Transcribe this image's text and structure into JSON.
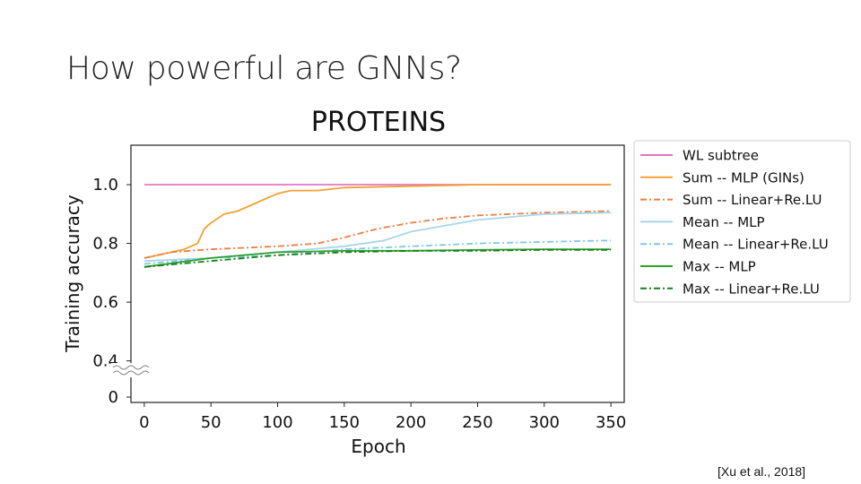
{
  "slide": {
    "title": "How powerful are GNNs?",
    "citation": "[Xu et al., 2018]"
  },
  "chart_data": {
    "type": "line",
    "title": "PROTEINS",
    "xlabel": "Epoch",
    "ylabel": "Training accuracy",
    "xlim": [
      -10,
      360
    ],
    "x_ticks": [
      0,
      50,
      100,
      150,
      200,
      250,
      300,
      350
    ],
    "y_ticks": [
      0,
      0.4,
      0.6,
      0.8,
      1.0
    ],
    "y_tick_labels": [
      "0",
      "0.4",
      "0.6",
      "0.8",
      "1.0"
    ],
    "y_axis_break": "between 0 and 0.4",
    "ylim_upper_segment": [
      0.35,
      1.11
    ],
    "grid": false,
    "legend_position": "right, outside plot",
    "series": [
      {
        "name": "WL subtree",
        "color": "#e377c2",
        "linestyle": "solid",
        "points": [
          [
            0,
            1.0
          ],
          [
            350,
            1.0
          ]
        ]
      },
      {
        "name": "Sum -- MLP (GINs)",
        "color": "#f5a033",
        "linestyle": "solid",
        "points": [
          [
            0,
            0.75
          ],
          [
            10,
            0.76
          ],
          [
            20,
            0.77
          ],
          [
            30,
            0.78
          ],
          [
            40,
            0.8
          ],
          [
            45,
            0.85
          ],
          [
            50,
            0.87
          ],
          [
            60,
            0.9
          ],
          [
            70,
            0.91
          ],
          [
            80,
            0.93
          ],
          [
            90,
            0.95
          ],
          [
            100,
            0.97
          ],
          [
            110,
            0.98
          ],
          [
            130,
            0.98
          ],
          [
            150,
            0.99
          ],
          [
            200,
            0.995
          ],
          [
            250,
            1.0
          ],
          [
            350,
            1.0
          ]
        ]
      },
      {
        "name": "Sum -- Linear+Re.LU",
        "color": "#ee7d3e",
        "linestyle": "dashdot",
        "points": [
          [
            0,
            0.75
          ],
          [
            20,
            0.77
          ],
          [
            50,
            0.78
          ],
          [
            100,
            0.79
          ],
          [
            130,
            0.8
          ],
          [
            150,
            0.82
          ],
          [
            175,
            0.85
          ],
          [
            200,
            0.87
          ],
          [
            225,
            0.885
          ],
          [
            250,
            0.895
          ],
          [
            275,
            0.9
          ],
          [
            300,
            0.905
          ],
          [
            350,
            0.91
          ]
        ]
      },
      {
        "name": "Mean -- MLP",
        "color": "#a9d6e8",
        "linestyle": "solid",
        "points": [
          [
            0,
            0.74
          ],
          [
            50,
            0.75
          ],
          [
            100,
            0.77
          ],
          [
            150,
            0.79
          ],
          [
            180,
            0.81
          ],
          [
            200,
            0.84
          ],
          [
            225,
            0.86
          ],
          [
            250,
            0.88
          ],
          [
            275,
            0.89
          ],
          [
            300,
            0.9
          ],
          [
            350,
            0.905
          ]
        ]
      },
      {
        "name": "Mean -- Linear+Re.LU",
        "color": "#7ec8e3",
        "linestyle": "dashdot",
        "points": [
          [
            0,
            0.73
          ],
          [
            50,
            0.75
          ],
          [
            100,
            0.76
          ],
          [
            150,
            0.78
          ],
          [
            200,
            0.79
          ],
          [
            250,
            0.8
          ],
          [
            300,
            0.805
          ],
          [
            350,
            0.81
          ]
        ]
      },
      {
        "name": "Max -- MLP",
        "color": "#2ca02c",
        "linestyle": "solid",
        "points": [
          [
            0,
            0.72
          ],
          [
            50,
            0.75
          ],
          [
            100,
            0.77
          ],
          [
            150,
            0.775
          ],
          [
            200,
            0.775
          ],
          [
            250,
            0.778
          ],
          [
            300,
            0.78
          ],
          [
            350,
            0.78
          ]
        ]
      },
      {
        "name": "Max -- Linear+Re.LU",
        "color": "#17801a",
        "linestyle": "dashdot",
        "points": [
          [
            0,
            0.72
          ],
          [
            50,
            0.74
          ],
          [
            100,
            0.76
          ],
          [
            150,
            0.77
          ],
          [
            200,
            0.775
          ],
          [
            250,
            0.775
          ],
          [
            300,
            0.778
          ],
          [
            350,
            0.778
          ]
        ]
      }
    ]
  }
}
